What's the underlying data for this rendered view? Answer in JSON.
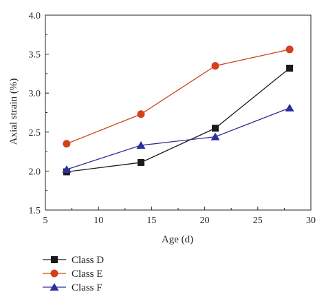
{
  "chart_data": {
    "type": "line",
    "x": [
      7,
      14,
      21,
      28
    ],
    "xlabel": "Age (d)",
    "ylabel": "Axial strain (%)",
    "xlim": [
      5,
      30
    ],
    "ylim": [
      1.5,
      4.0
    ],
    "xticks": [
      5,
      10,
      15,
      20,
      25,
      30
    ],
    "yticks": [
      1.5,
      2.0,
      2.5,
      3.0,
      3.5,
      4.0
    ],
    "grid": false,
    "legend_position": "bottom-left, below plot",
    "series": [
      {
        "name": "Class D",
        "values": [
          1.99,
          2.11,
          2.55,
          3.32
        ],
        "color": "#1a1a1a",
        "marker": "square"
      },
      {
        "name": "Class E",
        "values": [
          2.35,
          2.73,
          3.35,
          3.56
        ],
        "color": "#d2401c",
        "marker": "circle"
      },
      {
        "name": "Class F",
        "values": [
          2.02,
          2.33,
          2.44,
          2.81
        ],
        "color": "#2e2e9c",
        "marker": "triangle"
      }
    ]
  }
}
